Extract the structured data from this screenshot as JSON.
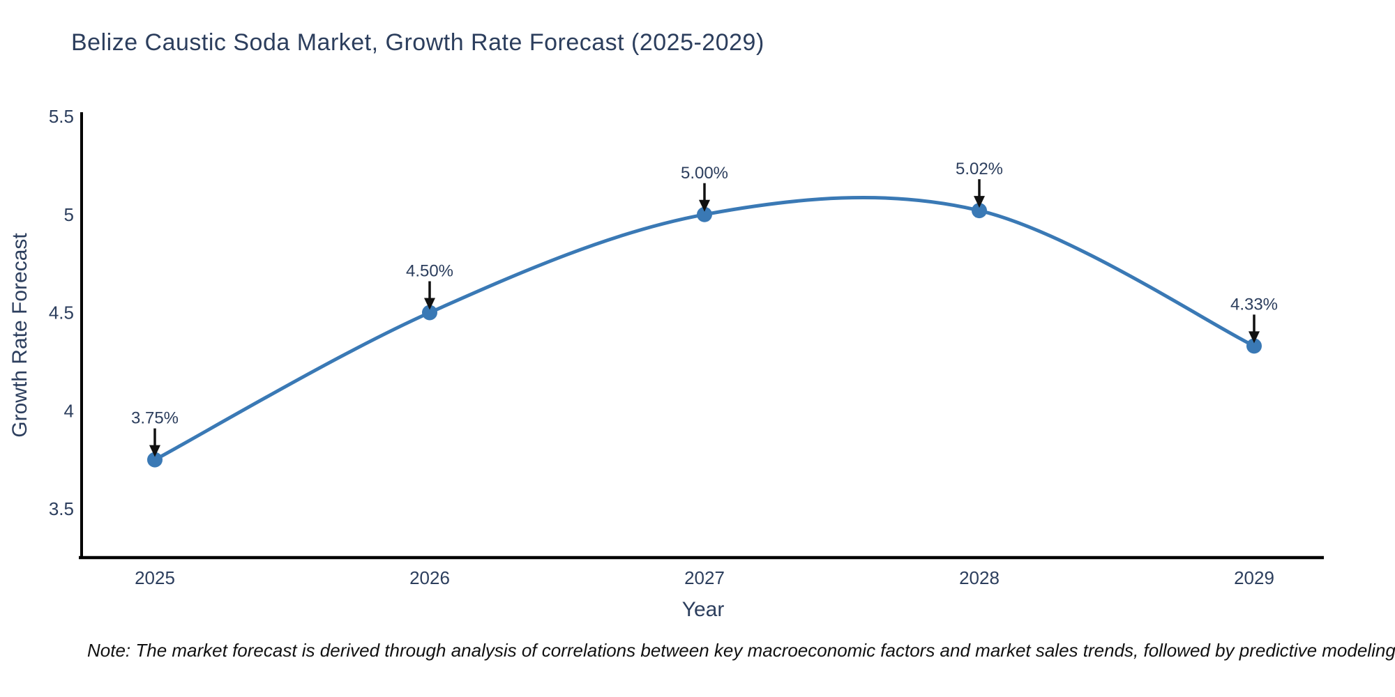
{
  "title": "Belize Caustic Soda Market, Growth Rate Forecast (2025-2029)",
  "note": "Note: The market forecast is derived through analysis of correlations between key macroeconomic factors and market sales trends, followed by predictive modeling to project future sales",
  "chart_data": {
    "type": "line",
    "title": "Belize Caustic Soda Market, Growth Rate Forecast (2025-2029)",
    "xlabel": "Year",
    "ylabel": "Growth Rate Forecast",
    "x": [
      "2025",
      "2026",
      "2027",
      "2028",
      "2029"
    ],
    "values": [
      3.75,
      4.5,
      5.0,
      5.02,
      4.33
    ],
    "point_labels": [
      "3.75%",
      "4.50%",
      "5.00%",
      "5.02%",
      "4.33%"
    ],
    "y_ticks": [
      5.5,
      5.0,
      4.5,
      4.0,
      3.5
    ],
    "y_tick_labels": [
      "5.5",
      "5",
      "4.5",
      "4",
      "3.5"
    ],
    "ylim": [
      3.25,
      5.53
    ],
    "line_shape": "spline",
    "grid": false,
    "legend_position": "none",
    "line_color": "#3a79b5",
    "marker_color": "#3a79b5",
    "axis_color": "#000000",
    "label_color": "#2c3e5d",
    "arrow_color": "#111111"
  }
}
